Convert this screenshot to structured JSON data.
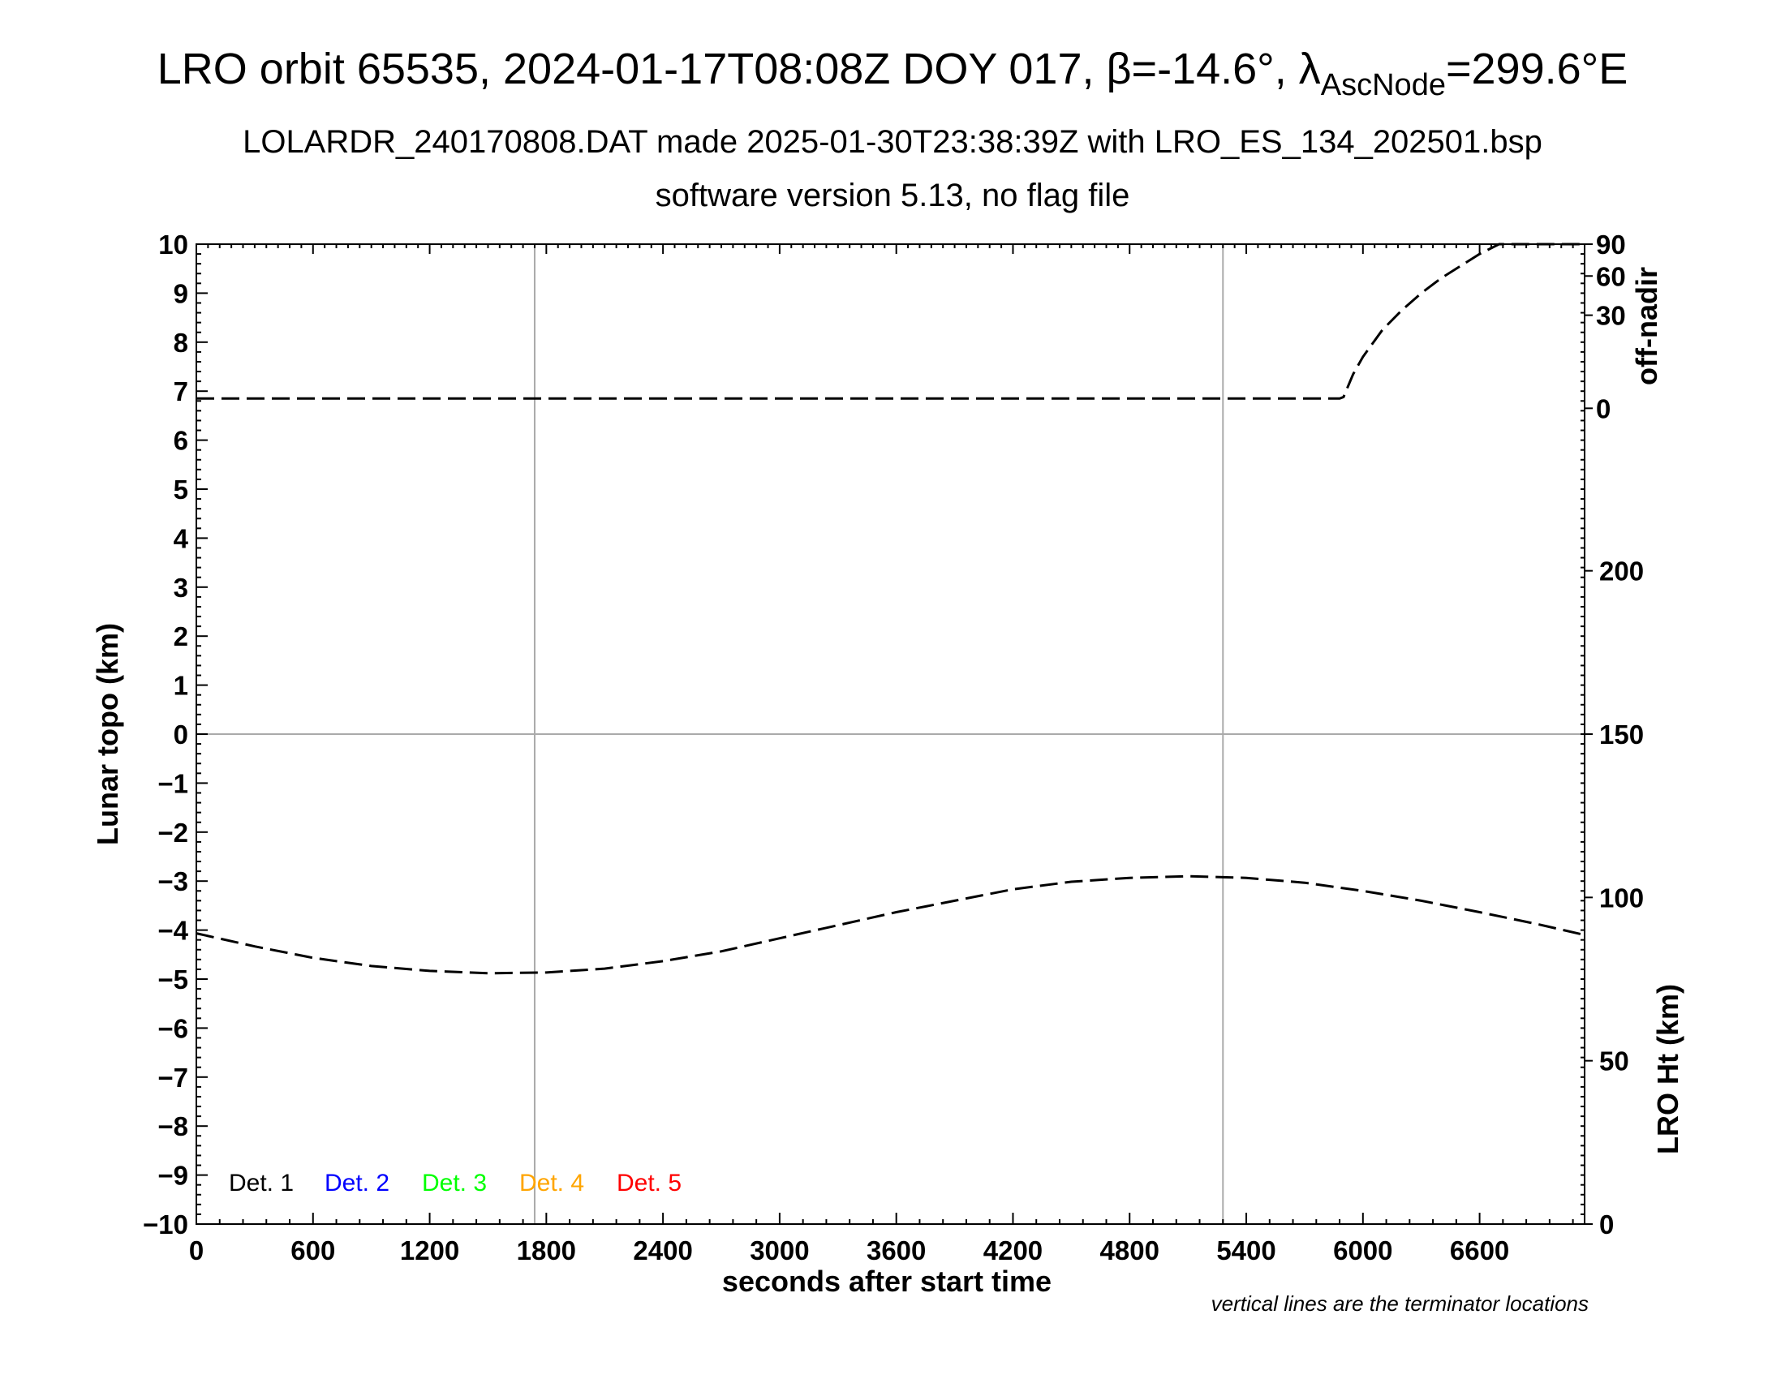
{
  "title_parts": {
    "main": "LRO orbit 65535, 2024-01-17T08:08Z DOY 017, β=-14.6°, λ",
    "subscript": "AscNode",
    "suffix": "=299.6°E"
  },
  "subtitle_1": "LOLARDR_240170808.DAT made 2025-01-30T23:38:39Z with LRO_ES_134_202501.bsp",
  "subtitle_2": "software version 5.13, no flag file",
  "footnote": "vertical lines are the terminator locations",
  "chart_data": {
    "type": "line",
    "xlabel": "seconds after start time",
    "ylabel_left": "Lunar topo (km)",
    "ylabel_right_top": "off-nadir",
    "ylabel_right_bottom": "LRO Ht (km)",
    "xlim": [
      0,
      7140
    ],
    "ylim": [
      -10,
      10
    ],
    "x_ticks": [
      0,
      600,
      1200,
      1800,
      2400,
      3000,
      3600,
      4200,
      4800,
      5400,
      6000,
      6600
    ],
    "y_ticks": [
      10,
      9,
      8,
      7,
      6,
      5,
      4,
      3,
      2,
      1,
      0,
      -1,
      -2,
      -3,
      -4,
      -5,
      -6,
      -7,
      -8,
      -9,
      -10
    ],
    "y_tick_labels": [
      "10",
      "9",
      "8",
      "7",
      "6",
      "5",
      "4",
      "3",
      "2",
      "1",
      "0",
      "−1",
      "−2",
      "−3",
      "−4",
      "−5",
      "−6",
      "−7",
      "−8",
      "−9",
      "−10"
    ],
    "right_top_axis": {
      "ticks": [
        90,
        60,
        30,
        0
      ],
      "positions_km": [
        10,
        9.35,
        8.55,
        6.65
      ]
    },
    "right_bottom_axis": {
      "ylim": [
        0,
        300
      ],
      "ticks": [
        200,
        150,
        100,
        50,
        0
      ]
    },
    "terminator_x": [
      1740,
      5280
    ],
    "zero_line": 0,
    "legend": [
      {
        "label": "Det. 1",
        "color": "#000000"
      },
      {
        "label": "Det. 2",
        "color": "#0000ff"
      },
      {
        "label": "Det. 3",
        "color": "#00ff00"
      },
      {
        "label": "Det. 4",
        "color": "#ffa500"
      },
      {
        "label": "Det. 5",
        "color": "#ff0000"
      }
    ],
    "series": [
      {
        "name": "off-nadir",
        "axis": "left",
        "style": "dashed",
        "x": [
          0,
          600,
          1200,
          1800,
          2400,
          3000,
          3600,
          4200,
          4800,
          5400,
          5880,
          5900,
          5950,
          6000,
          6100,
          6200,
          6300,
          6400,
          6500,
          6600,
          6700,
          6800,
          7000,
          7140
        ],
        "y": [
          6.85,
          6.85,
          6.85,
          6.85,
          6.85,
          6.85,
          6.85,
          6.85,
          6.85,
          6.85,
          6.85,
          6.88,
          7.35,
          7.7,
          8.25,
          8.65,
          9.0,
          9.3,
          9.55,
          9.8,
          10.0,
          10.0,
          10.0,
          10.0
        ]
      },
      {
        "name": "LRO Ht",
        "axis": "right_bottom",
        "style": "dashed",
        "x": [
          0,
          300,
          600,
          900,
          1200,
          1500,
          1800,
          2100,
          2400,
          2700,
          3000,
          3300,
          3600,
          3900,
          4200,
          4500,
          4800,
          5100,
          5400,
          5700,
          6000,
          6300,
          6600,
          6900,
          7140
        ],
        "y": [
          89,
          85,
          81.5,
          79,
          77.5,
          76.8,
          77,
          78.2,
          80.5,
          83.5,
          87.5,
          91.5,
          95.5,
          99,
          102.5,
          104.8,
          106,
          106.5,
          106,
          104.5,
          102,
          99,
          95.5,
          91.8,
          88.5
        ]
      }
    ]
  }
}
